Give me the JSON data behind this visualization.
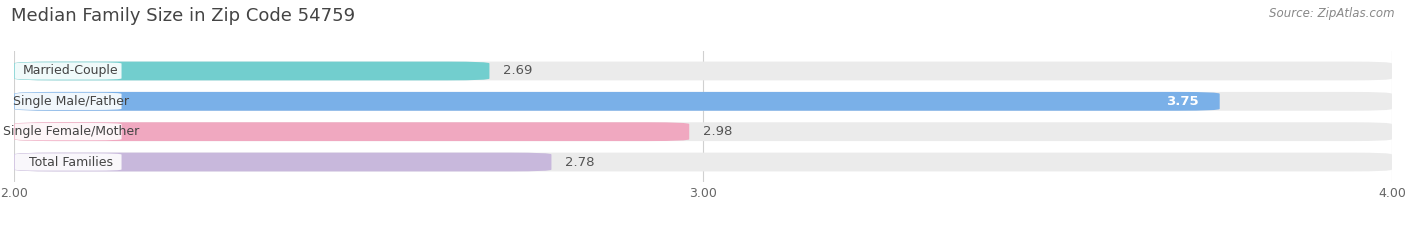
{
  "title": "Median Family Size in Zip Code 54759",
  "source": "Source: ZipAtlas.com",
  "categories": [
    "Married-Couple",
    "Single Male/Father",
    "Single Female/Mother",
    "Total Families"
  ],
  "values": [
    2.69,
    3.75,
    2.98,
    2.78
  ],
  "bar_colors": [
    "#72cece",
    "#7ab0e8",
    "#f0a8c0",
    "#c8b8dc"
  ],
  "label_colors": [
    "#333333",
    "#ffffff",
    "#333333",
    "#333333"
  ],
  "value_inside": [
    false,
    true,
    false,
    false
  ],
  "xlim": [
    2.0,
    4.0
  ],
  "xmin": 2.0,
  "xmax": 4.0,
  "xticks": [
    2.0,
    3.0,
    4.0
  ],
  "xtick_labels": [
    "2.00",
    "3.00",
    "4.00"
  ],
  "bar_height": 0.62,
  "background_color": "#ffffff",
  "bar_bg_color": "#ebebeb",
  "title_fontsize": 13,
  "label_fontsize": 9,
  "value_fontsize": 9.5
}
